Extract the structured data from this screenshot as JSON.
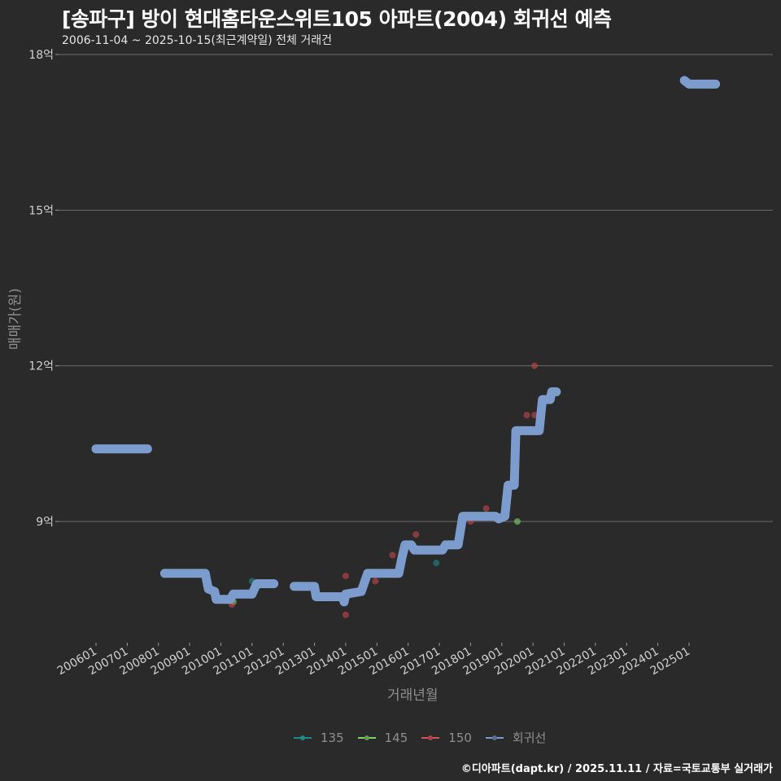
{
  "header": {
    "title": "[송파구] 방이 현대홈타운스위트105 아파트(2004) 회귀선 예측",
    "subtitle": "2006-11-04 ~ 2025-10-15(최근계약일) 전체 거래건"
  },
  "footer": "©디아파트(dapt.kr) / 2025.11.11 / 자료=국토교통부 실거래가",
  "chart_data": {
    "type": "scatter",
    "title": "[송파구] 방이 현대홈타운스위트105 아파트(2004) 회귀선 예측",
    "subtitle": "2006-11-04 ~ 2025-10-15(최근계약일) 전체 거래건",
    "xlabel": "거래년월",
    "ylabel": "매매가(원)",
    "ylim": [
      7.6,
      18.0
    ],
    "yticks": [
      9,
      12,
      15,
      18
    ],
    "ytick_labels": [
      "9억",
      "12억",
      "15억",
      "18억"
    ],
    "xtick_labels": [
      "200601",
      "200701",
      "200801",
      "200901",
      "201001",
      "201101",
      "201201",
      "201301",
      "201401",
      "201501",
      "201601",
      "201701",
      "201801",
      "201901",
      "202001",
      "202101",
      "202201",
      "202301",
      "202401",
      "202501"
    ],
    "grid": true,
    "legend_position": "bottom",
    "legend": [
      {
        "name": "135",
        "color": "#1f8a8a"
      },
      {
        "name": "145",
        "color": "#7ed36a"
      },
      {
        "name": "150",
        "color": "#c8484e"
      },
      {
        "name": "회귀선",
        "color": "#7b9ccc"
      }
    ],
    "series": [
      {
        "name": "135",
        "color": "#1f8a8a",
        "points": [
          {
            "x": 2011.0,
            "y": 7.85
          },
          {
            "x": 2016.9,
            "y": 8.2
          }
        ]
      },
      {
        "name": "145",
        "color": "#7ed36a",
        "points": [
          {
            "x": 2010.4,
            "y": 7.45
          },
          {
            "x": 2019.5,
            "y": 9.0
          }
        ]
      },
      {
        "name": "150",
        "color": "#c8484e",
        "points": [
          {
            "x": 2010.35,
            "y": 7.4
          },
          {
            "x": 2014.0,
            "y": 7.95
          },
          {
            "x": 2014.0,
            "y": 7.2
          },
          {
            "x": 2014.95,
            "y": 7.85
          },
          {
            "x": 2015.5,
            "y": 8.35
          },
          {
            "x": 2016.25,
            "y": 8.75
          },
          {
            "x": 2018.0,
            "y": 9.0
          },
          {
            "x": 2018.5,
            "y": 9.25
          },
          {
            "x": 2019.8,
            "y": 11.05
          },
          {
            "x": 2020.05,
            "y": 11.05
          },
          {
            "x": 2020.05,
            "y": 12.0
          },
          {
            "x": 2025.7,
            "y": 17.4
          }
        ]
      },
      {
        "name": "회귀선",
        "color": "#7b9ccc",
        "segments": [
          [
            [
              2006.0,
              10.4
            ],
            [
              2007.65,
              10.4
            ]
          ],
          [
            [
              2008.2,
              8.0
            ],
            [
              2009.5,
              8.0
            ],
            [
              2009.6,
              7.7
            ],
            [
              2009.8,
              7.65
            ],
            [
              2009.85,
              7.5
            ],
            [
              2010.3,
              7.5
            ],
            [
              2010.4,
              7.6
            ],
            [
              2011.0,
              7.6
            ],
            [
              2011.15,
              7.8
            ],
            [
              2011.7,
              7.8
            ]
          ],
          [
            [
              2012.35,
              7.75
            ],
            [
              2013.0,
              7.75
            ],
            [
              2013.05,
              7.55
            ],
            [
              2013.9,
              7.55
            ],
            [
              2013.95,
              7.45
            ],
            [
              2014.0,
              7.6
            ],
            [
              2014.5,
              7.65
            ],
            [
              2014.7,
              8.0
            ],
            [
              2015.7,
              8.0
            ],
            [
              2015.8,
              8.3
            ],
            [
              2015.9,
              8.55
            ],
            [
              2016.1,
              8.55
            ],
            [
              2016.2,
              8.45
            ],
            [
              2017.1,
              8.45
            ],
            [
              2017.2,
              8.55
            ],
            [
              2017.6,
              8.55
            ],
            [
              2017.75,
              9.1
            ],
            [
              2018.8,
              9.1
            ],
            [
              2018.9,
              9.05
            ],
            [
              2019.1,
              9.1
            ],
            [
              2019.2,
              9.7
            ],
            [
              2019.4,
              9.7
            ],
            [
              2019.45,
              10.75
            ],
            [
              2020.2,
              10.75
            ],
            [
              2020.3,
              11.35
            ],
            [
              2020.55,
              11.35
            ],
            [
              2020.6,
              11.5
            ],
            [
              2020.75,
              11.5
            ]
          ],
          [
            [
              2024.85,
              17.5
            ],
            [
              2025.0,
              17.43
            ],
            [
              2025.85,
              17.43
            ]
          ]
        ]
      }
    ]
  }
}
